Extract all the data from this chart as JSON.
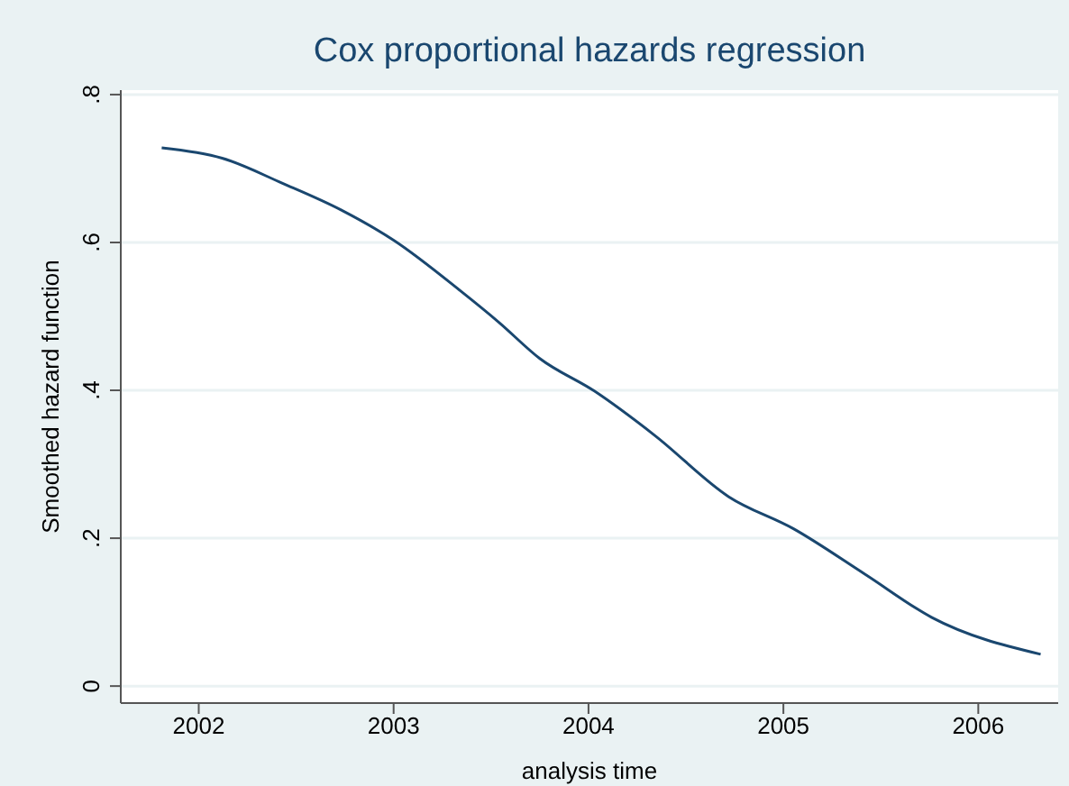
{
  "chart_data": {
    "type": "line",
    "title": "Cox proportional hazards regression",
    "xlabel": "analysis time",
    "ylabel": "Smoothed hazard function",
    "series": [
      {
        "color": "#1a476f",
        "x": [
          2001.81,
          2002.12,
          2002.43,
          2002.73,
          2003.0,
          2003.35,
          2003.54,
          2003.75,
          2004.03,
          2004.34,
          2004.72,
          2005.05,
          2005.42,
          2005.76,
          2006.32
        ],
        "values": [
          0.728,
          0.714,
          0.68,
          0.644,
          0.603,
          0.533,
          0.492,
          0.443,
          0.399,
          0.339,
          0.256,
          0.213,
          0.151,
          0.093,
          0.043
        ]
      }
    ],
    "xlim": [
      2001.6,
      2006.41
    ],
    "xticks": [
      2002,
      2003,
      2004,
      2005,
      2006
    ],
    "ylim": [
      -0.023,
      0.806
    ],
    "yticks": [
      {
        "value": 0,
        "label": "0"
      },
      {
        "value": 0.2,
        "label": ".2"
      },
      {
        "value": 0.4,
        "label": ".4"
      },
      {
        "value": 0.6,
        "label": ".6"
      },
      {
        "value": 0.8,
        "label": ".8"
      }
    ],
    "grid": "y",
    "marker": "none",
    "line_style": "solid"
  }
}
